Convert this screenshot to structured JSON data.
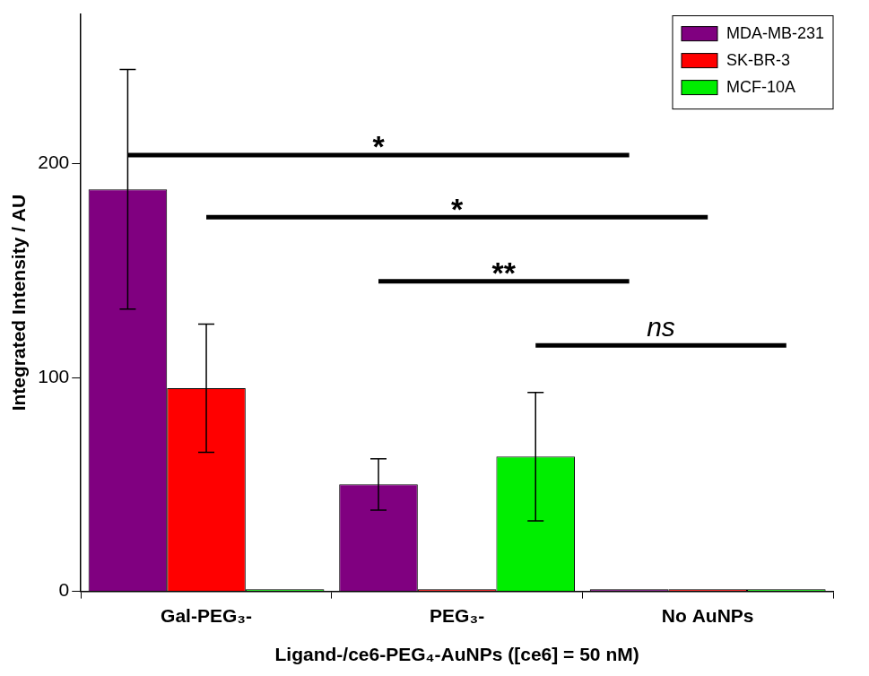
{
  "chart_data": {
    "type": "bar",
    "x_label": "Ligand-/ce6-PEG₄-AuNPs ([ce6] = 50 nM)",
    "y_label": "Integrated Intensity / AU",
    "categories": [
      "Gal-PEG₃-",
      "PEG₃-",
      "No AuNPs"
    ],
    "series": [
      {
        "name": "MDA-MB-231",
        "color": "#800080",
        "values": [
          188,
          50,
          1
        ],
        "errors": [
          56,
          12,
          null
        ]
      },
      {
        "name": "SK-BR-3",
        "color": "#ff0000",
        "values": [
          95,
          1,
          1
        ],
        "errors": [
          30,
          null,
          null
        ]
      },
      {
        "name": "MCF-10A",
        "color": "#00ee00",
        "values": [
          1,
          63,
          1
        ],
        "errors": [
          null,
          30,
          null
        ]
      }
    ],
    "ylim": [
      0,
      270
    ],
    "yticks": [
      0,
      100,
      200
    ],
    "grid": false,
    "legend": "top-right",
    "significance": [
      {
        "label": "*",
        "from": {
          "category": "Gal-PEG₃-",
          "series": "MDA-MB-231"
        },
        "to": {
          "category": "No AuNPs",
          "series": "MDA-MB-231"
        },
        "y": 204
      },
      {
        "label": "*",
        "from": {
          "category": "Gal-PEG₃-",
          "series": "SK-BR-3"
        },
        "to": {
          "category": "No AuNPs",
          "series": "SK-BR-3"
        },
        "y": 175
      },
      {
        "label": "**",
        "from": {
          "category": "PEG₃-",
          "series": "MDA-MB-231"
        },
        "to": {
          "category": "No AuNPs",
          "series": "MDA-MB-231"
        },
        "y": 145
      },
      {
        "label": "ns",
        "from": {
          "category": "PEG₃-",
          "series": "MCF-10A"
        },
        "to": {
          "category": "No AuNPs",
          "series": "MCF-10A"
        },
        "y": 115
      }
    ]
  }
}
